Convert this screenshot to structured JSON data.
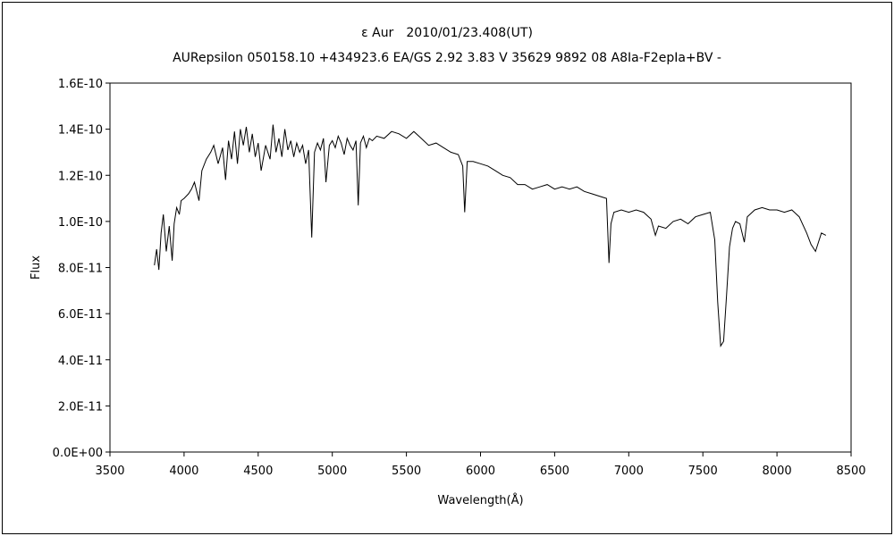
{
  "chart_data": {
    "type": "line",
    "title": "ε Aur　2010/01/23.408(UT)",
    "subtitle": "AURepsilon 050158.10 +434923.6 EA/GS 2.92 3.83 V 35629 9892 08 A8Ia-F2epIa+BV -",
    "xlabel": "Wavelength(Å)",
    "ylabel": "Flux",
    "xlim": [
      3500,
      8500
    ],
    "ylim": [
      0,
      1.6e-10
    ],
    "grid": false,
    "legend": "none",
    "x_ticks": [
      "3500",
      "4000",
      "4500",
      "5000",
      "5500",
      "6000",
      "6500",
      "7000",
      "7500",
      "8000",
      "8500"
    ],
    "y_ticks": [
      "0.0E+00",
      "2.0E-11",
      "4.0E-11",
      "6.0E-11",
      "8.0E-11",
      "1.0E-10",
      "1.2E-10",
      "1.4E-10",
      "1.6E-10"
    ],
    "series": [
      {
        "color": "#000000",
        "x": [
          3800,
          3815,
          3830,
          3845,
          3860,
          3880,
          3900,
          3920,
          3933,
          3950,
          3968,
          3980,
          4000,
          4030,
          4050,
          4070,
          4101,
          4120,
          4150,
          4180,
          4200,
          4230,
          4260,
          4280,
          4300,
          4320,
          4340,
          4360,
          4380,
          4400,
          4420,
          4440,
          4460,
          4480,
          4500,
          4520,
          4550,
          4580,
          4600,
          4620,
          4640,
          4660,
          4680,
          4700,
          4720,
          4740,
          4760,
          4780,
          4800,
          4820,
          4840,
          4861,
          4880,
          4900,
          4920,
          4940,
          4957,
          4980,
          5000,
          5020,
          5040,
          5060,
          5080,
          5100,
          5120,
          5140,
          5160,
          5175,
          5190,
          5210,
          5230,
          5250,
          5270,
          5300,
          5350,
          5400,
          5450,
          5500,
          5550,
          5600,
          5650,
          5700,
          5750,
          5800,
          5850,
          5880,
          5893,
          5910,
          5950,
          6000,
          6050,
          6100,
          6150,
          6200,
          6250,
          6300,
          6350,
          6400,
          6450,
          6500,
          6550,
          6600,
          6650,
          6700,
          6750,
          6800,
          6850,
          6867,
          6880,
          6900,
          6950,
          7000,
          7050,
          7100,
          7150,
          7180,
          7200,
          7250,
          7300,
          7350,
          7400,
          7450,
          7500,
          7550,
          7580,
          7600,
          7620,
          7640,
          7660,
          7680,
          7700,
          7720,
          7750,
          7780,
          7800,
          7850,
          7900,
          7950,
          8000,
          8050,
          8100,
          8150,
          8200,
          8230,
          8260,
          8300,
          8330
        ],
        "y": [
          8.1e-11,
          8.8e-11,
          7.9e-11,
          9.5e-11,
          1.03e-10,
          8.7e-11,
          9.8e-11,
          8.3e-11,
          9.9e-11,
          1.06e-10,
          1.03e-10,
          1.09e-10,
          1.1e-10,
          1.12e-10,
          1.14e-10,
          1.17e-10,
          1.09e-10,
          1.22e-10,
          1.27e-10,
          1.3e-10,
          1.33e-10,
          1.25e-10,
          1.32e-10,
          1.18e-10,
          1.35e-10,
          1.27e-10,
          1.39e-10,
          1.25e-10,
          1.4e-10,
          1.33e-10,
          1.41e-10,
          1.3e-10,
          1.38e-10,
          1.28e-10,
          1.34e-10,
          1.22e-10,
          1.33e-10,
          1.27e-10,
          1.42e-10,
          1.3e-10,
          1.36e-10,
          1.28e-10,
          1.4e-10,
          1.31e-10,
          1.35e-10,
          1.28e-10,
          1.34e-10,
          1.3e-10,
          1.33e-10,
          1.25e-10,
          1.31e-10,
          9.3e-11,
          1.3e-10,
          1.34e-10,
          1.31e-10,
          1.36e-10,
          1.17e-10,
          1.33e-10,
          1.35e-10,
          1.32e-10,
          1.37e-10,
          1.34e-10,
          1.29e-10,
          1.36e-10,
          1.33e-10,
          1.31e-10,
          1.35e-10,
          1.07e-10,
          1.34e-10,
          1.37e-10,
          1.32e-10,
          1.36e-10,
          1.35e-10,
          1.37e-10,
          1.36e-10,
          1.39e-10,
          1.38e-10,
          1.36e-10,
          1.39e-10,
          1.36e-10,
          1.33e-10,
          1.34e-10,
          1.32e-10,
          1.3e-10,
          1.29e-10,
          1.24e-10,
          1.04e-10,
          1.26e-10,
          1.26e-10,
          1.25e-10,
          1.24e-10,
          1.22e-10,
          1.2e-10,
          1.19e-10,
          1.16e-10,
          1.16e-10,
          1.14e-10,
          1.15e-10,
          1.16e-10,
          1.14e-10,
          1.15e-10,
          1.14e-10,
          1.15e-10,
          1.13e-10,
          1.12e-10,
          1.11e-10,
          1.1e-10,
          8.2e-11,
          9.9e-11,
          1.04e-10,
          1.05e-10,
          1.04e-10,
          1.05e-10,
          1.04e-10,
          1.01e-10,
          9.4e-11,
          9.8e-11,
          9.7e-11,
          1e-10,
          1.01e-10,
          9.9e-11,
          1.02e-10,
          1.03e-10,
          1.04e-10,
          9.2e-11,
          6.5e-11,
          4.6e-11,
          4.8e-11,
          6.8e-11,
          8.9e-11,
          9.7e-11,
          1e-10,
          9.9e-11,
          9.1e-11,
          1.02e-10,
          1.05e-10,
          1.06e-10,
          1.05e-10,
          1.05e-10,
          1.04e-10,
          1.05e-10,
          1.02e-10,
          9.5e-11,
          9e-11,
          8.7e-11,
          9.5e-11,
          9.4e-11
        ]
      }
    ]
  }
}
